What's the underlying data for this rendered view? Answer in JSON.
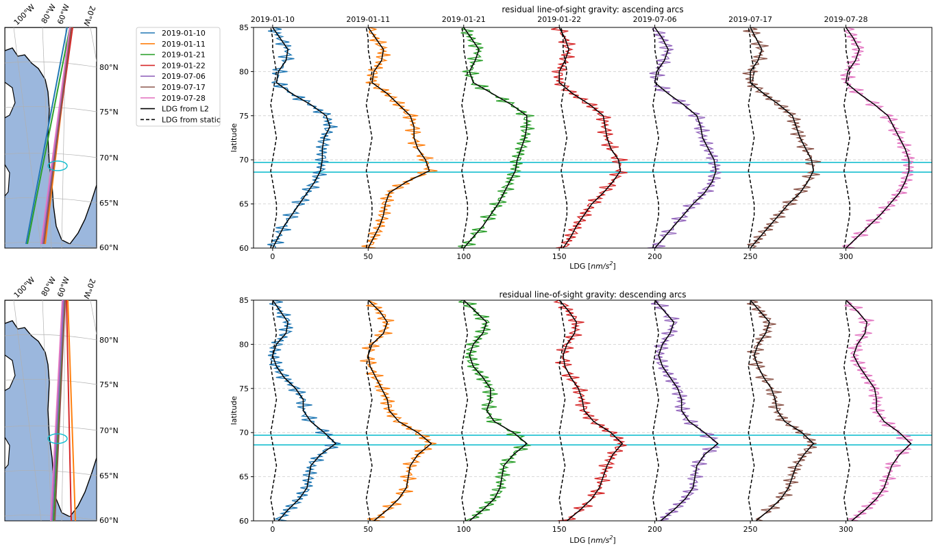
{
  "colors": {
    "2019-01-10": "#1f77b4",
    "2019-01-11": "#ff7f0e",
    "2019-01-21": "#2ca02c",
    "2019-01-22": "#d62728",
    "2019-07-06": "#9467bd",
    "2019-07-17": "#8c564b",
    "2019-07-28": "#e377c2",
    "highlight": "#17becf",
    "ocean": "#9bb7dd",
    "land": "#ffffff"
  },
  "legend": {
    "entries": [
      "2019-01-10",
      "2019-01-11",
      "2019-01-21",
      "2019-01-22",
      "2019-07-06",
      "2019-07-17",
      "2019-07-28"
    ],
    "l2_label": "LDG from L2",
    "static_label": "LDG from static",
    "placement": "left of charts"
  },
  "maps": [
    {
      "lon_labels": [
        "100°W",
        "80°W",
        "60°W",
        "20°W"
      ],
      "lat_labels": [
        "80°N",
        "75°N",
        "70°N",
        "65°N",
        "60°N"
      ],
      "track_labels": [
        "2019-01-10",
        "2019-01-11",
        "2019-01-21",
        "2019-01-22",
        "2019-07-06",
        "2019-07-17",
        "2019-07-28"
      ]
    },
    {
      "lon_labels": [
        "100°W",
        "80°W",
        "60°W",
        "20°W"
      ],
      "lat_labels": [
        "80°N",
        "75°N",
        "70°N",
        "65°N",
        "60°N"
      ],
      "track_labels": [
        "2019-01-10",
        "2019-01-11",
        "2019-01-21",
        "2019-01-22",
        "2019-07-06",
        "2019-07-17",
        "2019-07-28"
      ]
    }
  ],
  "chart_data": [
    {
      "type": "line",
      "title": "residual line-of-sight gravity: ascending arcs",
      "xlabel_prefix": "LDG [",
      "xlabel_unit": "nm/s",
      "xlabel_suffix": "]",
      "ylabel": "latitude",
      "xlim": [
        -10,
        345
      ],
      "ylim": [
        60,
        85
      ],
      "xticks": [
        0,
        50,
        100,
        150,
        200,
        250,
        300
      ],
      "yticks": [
        60,
        65,
        70,
        75,
        80,
        85
      ],
      "top_labels": [
        "2019-01-10",
        "2019-01-11",
        "2019-01-21",
        "2019-01-22",
        "2019-07-06",
        "2019-07-17",
        "2019-07-28"
      ],
      "offsets": [
        0,
        50,
        100,
        150,
        200,
        250,
        300
      ],
      "highlight_latitudes": [
        68.6,
        69.7
      ],
      "grid": "horizontal dashed",
      "lat": [
        60,
        61.25,
        62.5,
        63.75,
        65,
        66.25,
        67.5,
        68.75,
        70,
        71.25,
        72.5,
        73.75,
        75,
        76.25,
        77.5,
        78.75,
        80,
        81.25,
        82.5,
        83.75,
        85
      ],
      "series": [
        {
          "name": "2019-01-10",
          "l2": [
            0,
            3,
            6,
            10,
            14,
            18,
            22,
            25,
            26,
            26,
            27,
            30,
            28,
            20,
            10,
            2,
            3,
            7,
            8,
            4,
            0
          ],
          "static": [
            -1,
            0,
            1,
            2,
            2,
            1,
            0,
            -1,
            0,
            1,
            2,
            1,
            0,
            -1,
            0,
            1,
            2,
            1,
            0,
            0,
            -1
          ]
        },
        {
          "name": "2019-01-11",
          "l2": [
            50,
            53,
            56,
            58,
            59,
            61,
            70,
            82,
            80,
            76,
            74,
            74,
            72,
            66,
            60,
            52,
            53,
            57,
            58,
            54,
            50
          ],
          "static": [
            49,
            50,
            51,
            52,
            52,
            51,
            50,
            49,
            50,
            51,
            52,
            51,
            50,
            49,
            50,
            51,
            52,
            51,
            50,
            50,
            49
          ]
        },
        {
          "name": "2019-01-21",
          "l2": [
            100,
            105,
            110,
            114,
            118,
            121,
            124,
            127,
            128,
            130,
            132,
            133,
            133,
            125,
            115,
            105,
            103,
            106,
            108,
            104,
            100
          ],
          "static": [
            99,
            100,
            101,
            102,
            102,
            101,
            100,
            99,
            100,
            101,
            102,
            101,
            100,
            99,
            100,
            101,
            102,
            101,
            100,
            100,
            99
          ]
        },
        {
          "name": "2019-01-22",
          "l2": [
            152,
            156,
            159,
            163,
            167,
            173,
            178,
            182,
            181,
            177,
            175,
            174,
            173,
            166,
            157,
            150,
            150,
            153,
            155,
            153,
            150
          ],
          "static": [
            151,
            152,
            153,
            154,
            154,
            153,
            152,
            151,
            152,
            153,
            154,
            153,
            152,
            151,
            152,
            153,
            154,
            153,
            152,
            152,
            151
          ]
        },
        {
          "name": "2019-07-06",
          "l2": [
            200,
            205,
            210,
            215,
            220,
            226,
            230,
            232,
            231,
            228,
            225,
            224,
            222,
            215,
            207,
            200,
            201,
            205,
            207,
            204,
            200
          ],
          "static": [
            199,
            200,
            201,
            202,
            202,
            201,
            200,
            199,
            200,
            201,
            202,
            201,
            200,
            199,
            200,
            201,
            202,
            201,
            200,
            200,
            199
          ]
        },
        {
          "name": "2019-07-17",
          "l2": [
            250,
            255,
            260,
            265,
            270,
            276,
            280,
            283,
            282,
            279,
            276,
            274,
            272,
            265,
            257,
            250,
            250,
            254,
            256,
            253,
            250
          ],
          "static": [
            249,
            250,
            251,
            252,
            252,
            251,
            250,
            249,
            250,
            251,
            252,
            251,
            250,
            249,
            250,
            251,
            252,
            251,
            250,
            250,
            249
          ]
        },
        {
          "name": "2019-07-28",
          "l2": [
            300,
            306,
            312,
            318,
            323,
            328,
            331,
            333,
            333,
            331,
            328,
            325,
            322,
            315,
            307,
            300,
            301,
            305,
            307,
            304,
            300
          ],
          "static": [
            299,
            300,
            301,
            302,
            302,
            301,
            300,
            299,
            300,
            301,
            302,
            301,
            300,
            299,
            300,
            301,
            302,
            301,
            300,
            300,
            299
          ]
        }
      ]
    },
    {
      "type": "line",
      "title": "residual line-of-sight gravity: descending arcs",
      "xlabel_prefix": "LDG [",
      "xlabel_unit": "nm/s",
      "xlabel_suffix": "]",
      "ylabel": "latitude",
      "xlim": [
        -10,
        345
      ],
      "ylim": [
        60,
        85
      ],
      "xticks": [
        0,
        50,
        100,
        150,
        200,
        250,
        300
      ],
      "yticks": [
        60,
        65,
        70,
        75,
        80,
        85
      ],
      "top_labels": [],
      "offsets": [
        0,
        50,
        100,
        150,
        200,
        250,
        300
      ],
      "highlight_latitudes": [
        68.6,
        69.7
      ],
      "grid": "horizontal dashed",
      "lat": [
        60,
        61.25,
        62.5,
        63.75,
        65,
        66.25,
        67.5,
        68.75,
        70,
        71.25,
        72.5,
        73.75,
        75,
        76.25,
        77.5,
        78.75,
        80,
        81.25,
        82.5,
        83.75,
        85
      ],
      "series": [
        {
          "name": "2019-01-10",
          "l2": [
            3,
            8,
            14,
            18,
            19,
            20,
            25,
            33,
            27,
            20,
            16,
            16,
            12,
            6,
            2,
            0,
            2,
            7,
            8,
            4,
            0
          ],
          "static": [
            1,
            0,
            -1,
            0,
            1,
            2,
            1,
            0,
            -1,
            0,
            1,
            2,
            1,
            0,
            -1,
            0,
            1,
            2,
            1,
            0,
            0
          ]
        },
        {
          "name": "2019-01-11",
          "l2": [
            53,
            60,
            66,
            70,
            71,
            72,
            76,
            83,
            76,
            66,
            61,
            60,
            57,
            54,
            51,
            50,
            52,
            58,
            60,
            56,
            50
          ],
          "static": [
            51,
            50,
            49,
            50,
            51,
            52,
            51,
            50,
            49,
            50,
            51,
            52,
            51,
            50,
            49,
            50,
            51,
            52,
            51,
            50,
            50
          ]
        },
        {
          "name": "2019-01-21",
          "l2": [
            103,
            110,
            116,
            119,
            120,
            121,
            126,
            133,
            126,
            116,
            112,
            114,
            114,
            110,
            105,
            103,
            105,
            110,
            112,
            106,
            100
          ],
          "static": [
            101,
            100,
            99,
            100,
            101,
            102,
            101,
            100,
            99,
            100,
            101,
            102,
            101,
            100,
            99,
            100,
            101,
            102,
            101,
            100,
            100
          ]
        },
        {
          "name": "2019-01-22",
          "l2": [
            154,
            161,
            167,
            171,
            173,
            175,
            178,
            183,
            177,
            168,
            163,
            162,
            160,
            156,
            153,
            152,
            154,
            158,
            159,
            155,
            150
          ],
          "static": [
            152,
            151,
            150,
            151,
            152,
            153,
            152,
            151,
            150,
            151,
            152,
            153,
            152,
            151,
            150,
            151,
            152,
            153,
            152,
            151,
            151
          ]
        },
        {
          "name": "2019-07-06",
          "l2": [
            203,
            210,
            216,
            220,
            221,
            222,
            226,
            233,
            226,
            218,
            214,
            214,
            212,
            208,
            204,
            202,
            204,
            208,
            210,
            205,
            200
          ],
          "static": [
            201,
            200,
            199,
            200,
            201,
            202,
            201,
            200,
            199,
            200,
            201,
            202,
            201,
            200,
            199,
            200,
            201,
            202,
            201,
            200,
            200
          ]
        },
        {
          "name": "2019-07-17",
          "l2": [
            253,
            260,
            266,
            270,
            272,
            274,
            278,
            283,
            277,
            268,
            264,
            263,
            261,
            257,
            254,
            252,
            254,
            258,
            260,
            255,
            250
          ],
          "static": [
            251,
            250,
            249,
            250,
            251,
            252,
            251,
            250,
            249,
            250,
            251,
            252,
            251,
            250,
            249,
            250,
            251,
            252,
            251,
            250,
            250
          ]
        },
        {
          "name": "2019-07-28",
          "l2": [
            303,
            310,
            316,
            320,
            322,
            324,
            328,
            334,
            328,
            320,
            316,
            316,
            315,
            311,
            307,
            304,
            306,
            310,
            311,
            306,
            300
          ],
          "static": [
            301,
            300,
            299,
            300,
            301,
            302,
            301,
            300,
            299,
            300,
            301,
            302,
            301,
            300,
            299,
            300,
            301,
            302,
            301,
            300,
            300
          ]
        }
      ]
    }
  ]
}
